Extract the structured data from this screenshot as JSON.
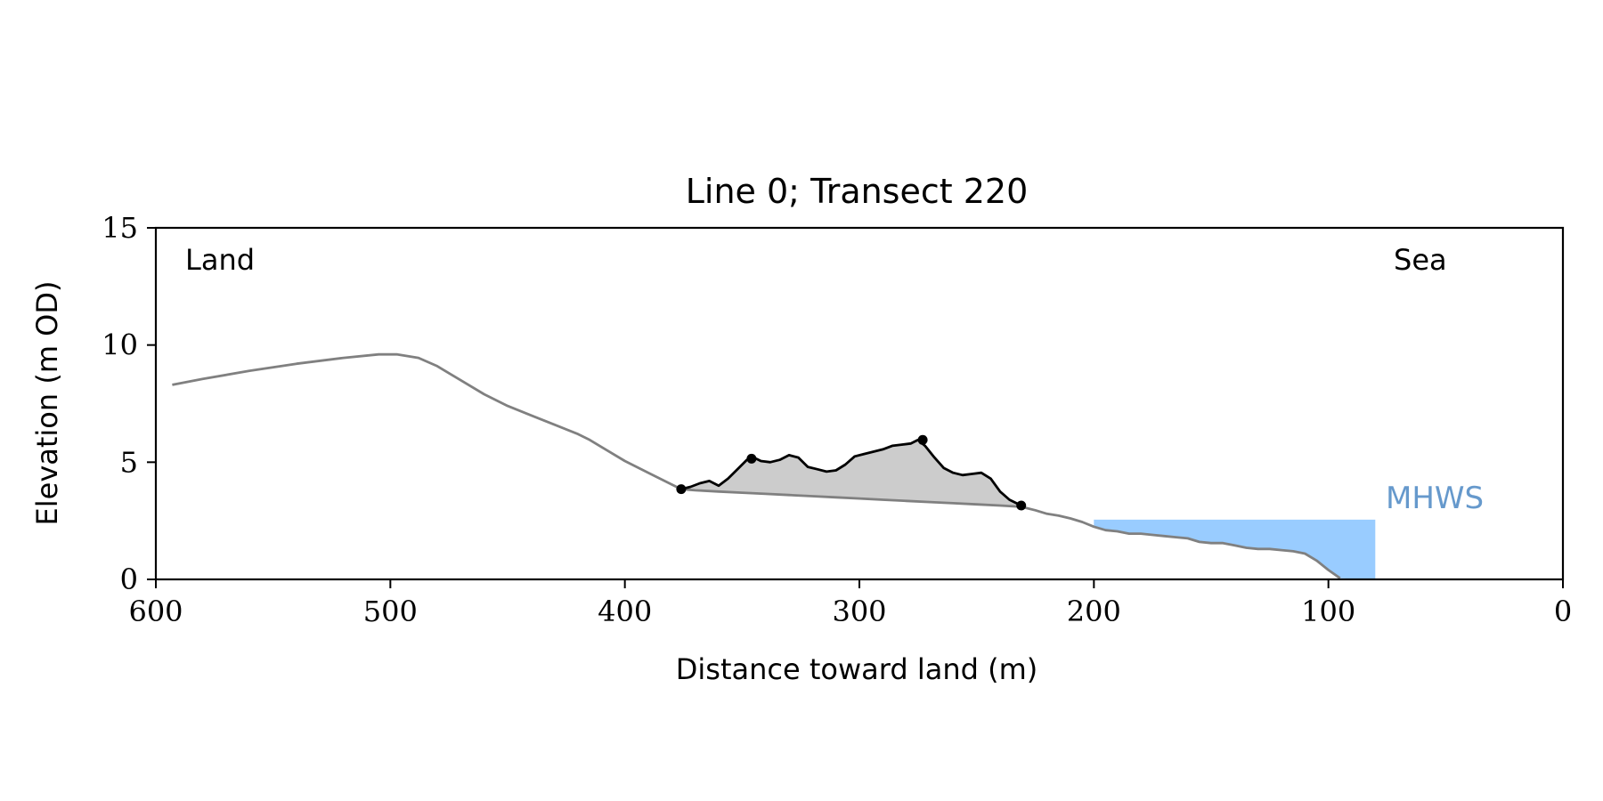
{
  "chart_data": {
    "type": "line",
    "title": "Line 0; Transect 220",
    "xlabel": "Distance toward land (m)",
    "ylabel": "Elevation (m OD)",
    "xlim": [
      600,
      0
    ],
    "ylim": [
      0,
      15
    ],
    "x_reversed": true,
    "xticks": [
      600,
      500,
      400,
      300,
      200,
      100,
      0
    ],
    "yticks": [
      0,
      5,
      10,
      15
    ],
    "grid": false,
    "annotations": {
      "land": "Land",
      "sea": "Sea",
      "mhws": "MHWS"
    },
    "colors": {
      "profile": "#808080",
      "dune": "#000000",
      "dune_fill": "#cccccc",
      "water": "#99ccff",
      "mhws_text": "#6699cc",
      "axis": "#000000"
    },
    "profile": {
      "x": [
        593,
        580,
        560,
        540,
        520,
        505,
        497,
        488,
        480,
        470,
        460,
        450,
        440,
        430,
        420,
        415,
        410,
        400,
        390,
        380,
        376,
        370,
        360,
        350,
        340,
        330,
        320,
        310,
        300,
        290,
        280,
        270,
        260,
        250,
        240,
        231,
        225,
        220,
        215,
        210,
        205,
        200,
        195,
        190,
        185,
        180,
        175,
        170,
        165,
        160,
        155,
        150,
        145,
        140,
        135,
        130,
        125,
        120,
        115,
        110,
        105,
        100,
        95
      ],
      "y": [
        8.3,
        8.55,
        8.9,
        9.2,
        9.45,
        9.6,
        9.6,
        9.45,
        9.1,
        8.5,
        7.9,
        7.4,
        7.0,
        6.6,
        6.2,
        5.95,
        5.65,
        5.05,
        4.55,
        4.05,
        3.85,
        3.8,
        3.75,
        3.7,
        3.65,
        3.6,
        3.55,
        3.5,
        3.45,
        3.4,
        3.35,
        3.3,
        3.25,
        3.2,
        3.15,
        3.1,
        2.95,
        2.8,
        2.72,
        2.6,
        2.45,
        2.25,
        2.1,
        2.05,
        1.95,
        1.95,
        1.9,
        1.85,
        1.8,
        1.75,
        1.6,
        1.55,
        1.55,
        1.45,
        1.35,
        1.3,
        1.3,
        1.25,
        1.2,
        1.1,
        0.8,
        0.4,
        0.05
      ]
    },
    "dune_crest": {
      "x": [
        376,
        372,
        368,
        364,
        360,
        356,
        352,
        348,
        345,
        342,
        338,
        334,
        330,
        326,
        322,
        318,
        314,
        310,
        306,
        302,
        298,
        294,
        290,
        286,
        282,
        278,
        275,
        272,
        268,
        264,
        260,
        256,
        252,
        248,
        244,
        240,
        236,
        231
      ],
      "y": [
        3.85,
        3.95,
        4.1,
        4.2,
        4.0,
        4.3,
        4.7,
        5.1,
        5.2,
        5.05,
        5.0,
        5.1,
        5.3,
        5.2,
        4.8,
        4.7,
        4.6,
        4.65,
        4.9,
        5.25,
        5.35,
        5.45,
        5.55,
        5.7,
        5.75,
        5.8,
        5.95,
        5.7,
        5.2,
        4.75,
        4.55,
        4.45,
        4.5,
        4.55,
        4.3,
        3.75,
        3.4,
        3.15
      ]
    },
    "markers": {
      "x": [
        376,
        346,
        273,
        231
      ],
      "y": [
        3.85,
        5.15,
        5.95,
        3.15
      ]
    },
    "mhws": {
      "level": 2.55,
      "x_from": 200,
      "x_to": 80
    }
  }
}
